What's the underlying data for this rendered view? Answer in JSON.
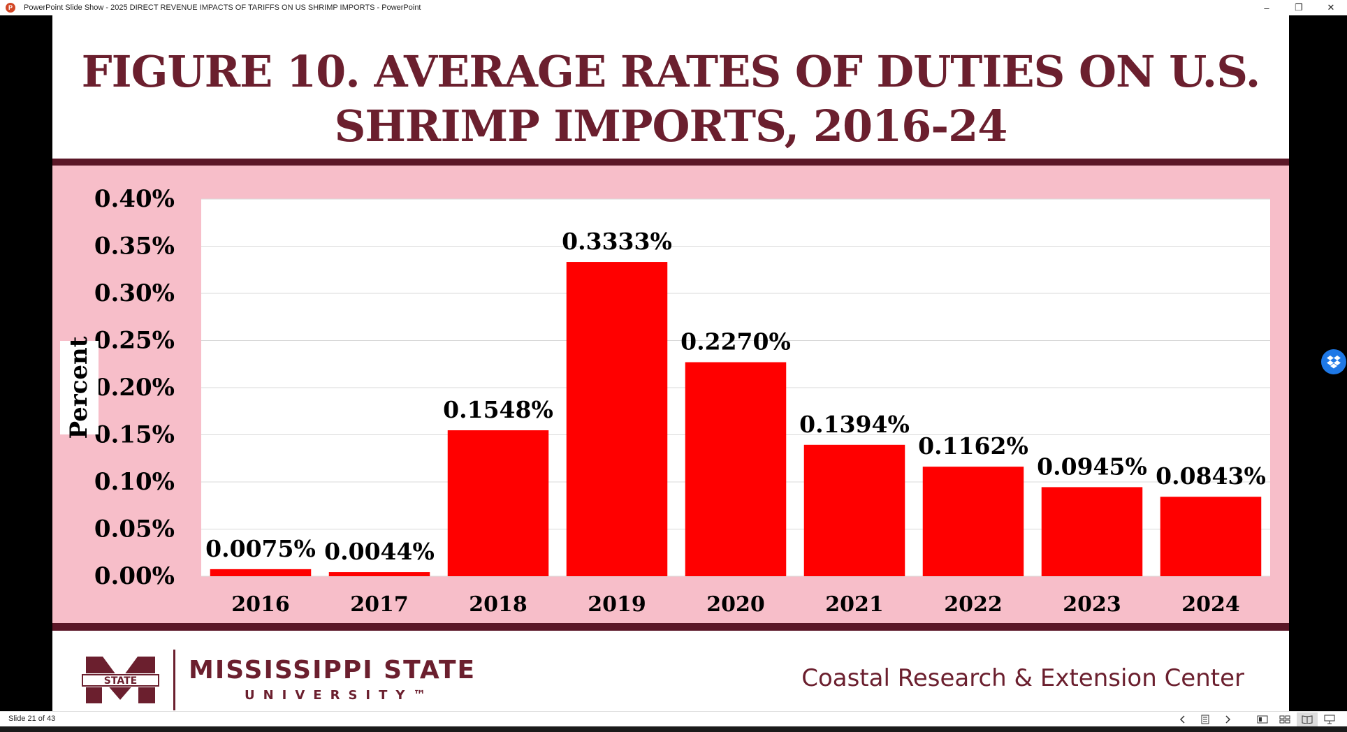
{
  "window": {
    "title": "PowerPoint Slide Show  -  2025 DIRECT REVENUE IMPACTS OF TARIFFS ON US SHRIMP IMPORTS - PowerPoint",
    "app_icon_letter": "P",
    "minimize": "–",
    "restore": "❐",
    "close": "✕"
  },
  "slide": {
    "title": "FIGURE 10. AVERAGE RATES OF DUTIES ON U.S. SHRIMP IMPORTS, 2016-24",
    "university_name": "MISSISSIPPI STATE",
    "university_sub": "UNIVERSITY™",
    "logo_badge_text": "STATE",
    "center_name": "Coastal Research & Extension Center"
  },
  "chart_data": {
    "type": "bar",
    "categories": [
      "2016",
      "2017",
      "2018",
      "2019",
      "2020",
      "2021",
      "2022",
      "2023",
      "2024"
    ],
    "values": [
      0.0075,
      0.0044,
      0.1548,
      0.3333,
      0.227,
      0.1394,
      0.1162,
      0.0945,
      0.0843
    ],
    "data_labels": [
      "0.0075%",
      "0.0044%",
      "0.1548%",
      "0.3333%",
      "0.2270%",
      "0.1394%",
      "0.1162%",
      "0.0945%",
      "0.0843%"
    ],
    "ylabel": "Percent",
    "ylim": [
      0,
      0.4
    ],
    "yticks": [
      "0.00%",
      "0.05%",
      "0.10%",
      "0.15%",
      "0.20%",
      "0.25%",
      "0.30%",
      "0.35%",
      "0.40%"
    ],
    "grid": true,
    "bar_color": "#ff0000",
    "plot_background": "#ffffff",
    "chart_background": "#f7bec9"
  },
  "colors": {
    "maroon": "#6b1f2e",
    "band": "#5b1727"
  },
  "statusbar": {
    "slide_counter": "Slide 21 of 43"
  }
}
